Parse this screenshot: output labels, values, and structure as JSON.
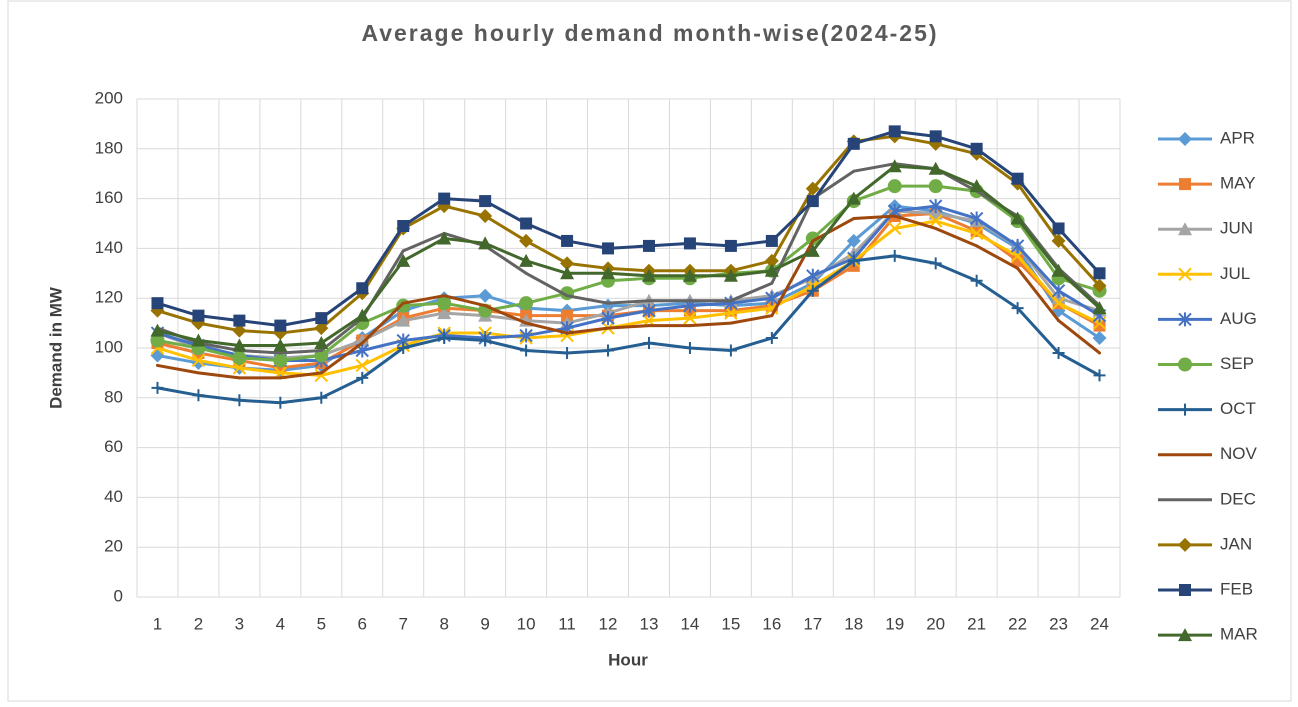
{
  "chart_data": {
    "type": "line",
    "title": "Average hourly demand month-wise(2024-25)",
    "x_label": "Hour",
    "y_label": "Demand in MW",
    "categories": [
      "1",
      "2",
      "3",
      "4",
      "5",
      "6",
      "7",
      "8",
      "9",
      "10",
      "11",
      "12",
      "13",
      "14",
      "15",
      "16",
      "17",
      "18",
      "19",
      "20",
      "21",
      "22",
      "23",
      "24"
    ],
    "ylim": [
      0,
      200
    ],
    "yticks": [
      0,
      20,
      40,
      60,
      80,
      100,
      120,
      140,
      160,
      180,
      200
    ],
    "grid": true,
    "legend": "right",
    "series": [
      {
        "name": "APR",
        "color": "#5b9bd5",
        "marker": "diamond",
        "values": [
          97,
          94,
          92,
          91,
          93,
          104,
          115,
          120,
          121,
          116,
          115,
          117,
          117,
          118,
          117,
          118,
          126,
          143,
          157,
          155,
          150,
          140,
          115,
          104
        ]
      },
      {
        "name": "MAY",
        "color": "#ed7d31",
        "marker": "square",
        "values": [
          102,
          98,
          95,
          92,
          94,
          103,
          112,
          116,
          115,
          113,
          113,
          113,
          115,
          115,
          115,
          117,
          123,
          133,
          153,
          154,
          147,
          135,
          118,
          109
        ]
      },
      {
        "name": "JUN",
        "color": "#a5a5a5",
        "marker": "triangle",
        "values": [
          106,
          100,
          97,
          96,
          97,
          103,
          111,
          114,
          113,
          111,
          110,
          114,
          119,
          119,
          119,
          121,
          128,
          138,
          155,
          154,
          151,
          141,
          120,
          115
        ]
      },
      {
        "name": "JUL",
        "color": "#ffc000",
        "marker": "x",
        "values": [
          100,
          95,
          92,
          90,
          89,
          93,
          101,
          106,
          106,
          104,
          105,
          108,
          111,
          112,
          114,
          116,
          125,
          135,
          148,
          151,
          146,
          137,
          118,
          110
        ]
      },
      {
        "name": "AUG",
        "color": "#4472c4",
        "marker": "star",
        "values": [
          106,
          101,
          97,
          95,
          95,
          99,
          103,
          105,
          104,
          105,
          108,
          112,
          115,
          117,
          118,
          120,
          129,
          136,
          155,
          157,
          152,
          141,
          123,
          113
        ]
      },
      {
        "name": "SEP",
        "color": "#70ad47",
        "marker": "circle",
        "values": [
          103,
          100,
          96,
          95,
          97,
          110,
          117,
          118,
          115,
          118,
          122,
          127,
          128,
          128,
          130,
          131,
          144,
          159,
          165,
          165,
          163,
          151,
          128,
          123
        ]
      },
      {
        "name": "OCT",
        "color": "#255e91",
        "marker": "plus",
        "values": [
          84,
          81,
          79,
          78,
          80,
          88,
          100,
          104,
          103,
          99,
          98,
          99,
          102,
          100,
          99,
          104,
          123,
          135,
          137,
          134,
          127,
          116,
          98,
          89
        ]
      },
      {
        "name": "NOV",
        "color": "#9e480e",
        "marker": "none",
        "values": [
          93,
          90,
          88,
          88,
          90,
          102,
          118,
          121,
          117,
          110,
          106,
          108,
          109,
          109,
          110,
          113,
          143,
          152,
          153,
          148,
          141,
          132,
          111,
          98
        ]
      },
      {
        "name": "DEC",
        "color": "#636363",
        "marker": "none",
        "values": [
          108,
          102,
          99,
          98,
          99,
          112,
          139,
          146,
          141,
          130,
          121,
          118,
          119,
          119,
          119,
          126,
          160,
          171,
          174,
          172,
          163,
          153,
          132,
          117
        ]
      },
      {
        "name": "JAN",
        "color": "#997300",
        "marker": "diamond",
        "values": [
          115,
          110,
          107,
          106,
          108,
          122,
          148,
          157,
          153,
          143,
          134,
          132,
          131,
          131,
          131,
          135,
          164,
          183,
          185,
          182,
          178,
          166,
          143,
          125
        ]
      },
      {
        "name": "FEB",
        "color": "#264478",
        "marker": "square",
        "values": [
          118,
          113,
          111,
          109,
          112,
          124,
          149,
          160,
          159,
          150,
          143,
          140,
          141,
          142,
          141,
          143,
          159,
          182,
          187,
          185,
          180,
          168,
          148,
          130
        ]
      },
      {
        "name": "MAR",
        "color": "#43682b",
        "marker": "triangle",
        "values": [
          107,
          103,
          101,
          101,
          102,
          113,
          135,
          144,
          142,
          135,
          130,
          130,
          129,
          129,
          129,
          131,
          139,
          160,
          173,
          172,
          165,
          152,
          131,
          116
        ]
      }
    ]
  }
}
